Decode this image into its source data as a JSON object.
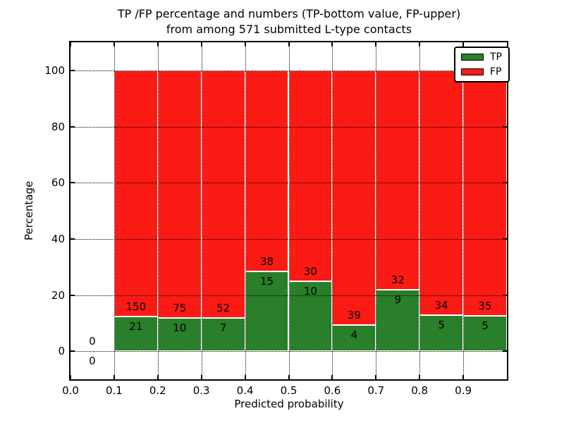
{
  "title": {
    "line1": "TP /FP percentage and numbers (TP-bottom value, FP-upper)",
    "line2": "from among 571 submitted L-type contacts"
  },
  "axes": {
    "xlabel": "Predicted probability",
    "ylabel": "Percentage"
  },
  "legend": {
    "items": [
      {
        "label": "TP",
        "color": "#2a7f2a"
      },
      {
        "label": "FP",
        "color": "#fc1a15"
      }
    ]
  },
  "chart_data": {
    "type": "bar",
    "stacked": true,
    "title": "TP /FP percentage and numbers (TP-bottom value, FP-upper) from among 571 submitted L-type contacts",
    "xlabel": "Predicted probability",
    "ylabel": "Percentage",
    "total_submitted": 571,
    "xlim": [
      0.0,
      1.0
    ],
    "ylim": [
      -10,
      110
    ],
    "grid": "dotted",
    "legend_position": "upper right",
    "x_tick_values": [
      0.0,
      0.1,
      0.2,
      0.3,
      0.4,
      0.5,
      0.6,
      0.7,
      0.8,
      0.9
    ],
    "x_tick_labels": [
      "0.0",
      "0.1",
      "0.2",
      "0.3",
      "0.4",
      "0.5",
      "0.6",
      "0.7",
      "0.8",
      "0.9"
    ],
    "y_tick_values": [
      0,
      20,
      40,
      60,
      80,
      100
    ],
    "y_tick_labels": [
      "0",
      "20",
      "40",
      "60",
      "80",
      "100"
    ],
    "series": [
      {
        "name": "TP",
        "color": "#2a7f2a",
        "position": "bottom"
      },
      {
        "name": "FP",
        "color": "#fc1a15",
        "position": "top"
      }
    ],
    "bins": [
      {
        "x_start": 0.0,
        "x_end": 0.1,
        "tp_count": 0,
        "fp_count": 0
      },
      {
        "x_start": 0.1,
        "x_end": 0.2,
        "tp_count": 21,
        "fp_count": 150
      },
      {
        "x_start": 0.2,
        "x_end": 0.3,
        "tp_count": 10,
        "fp_count": 75
      },
      {
        "x_start": 0.3,
        "x_end": 0.4,
        "tp_count": 7,
        "fp_count": 52
      },
      {
        "x_start": 0.4,
        "x_end": 0.5,
        "tp_count": 15,
        "fp_count": 38
      },
      {
        "x_start": 0.5,
        "x_end": 0.6,
        "tp_count": 10,
        "fp_count": 30
      },
      {
        "x_start": 0.6,
        "x_end": 0.7,
        "tp_count": 4,
        "fp_count": 39
      },
      {
        "x_start": 0.7,
        "x_end": 0.8,
        "tp_count": 9,
        "fp_count": 32
      },
      {
        "x_start": 0.8,
        "x_end": 0.9,
        "tp_count": 5,
        "fp_count": 34
      },
      {
        "x_start": 0.9,
        "x_end": 1.0,
        "tp_count": 5,
        "fp_count": 35
      }
    ]
  }
}
